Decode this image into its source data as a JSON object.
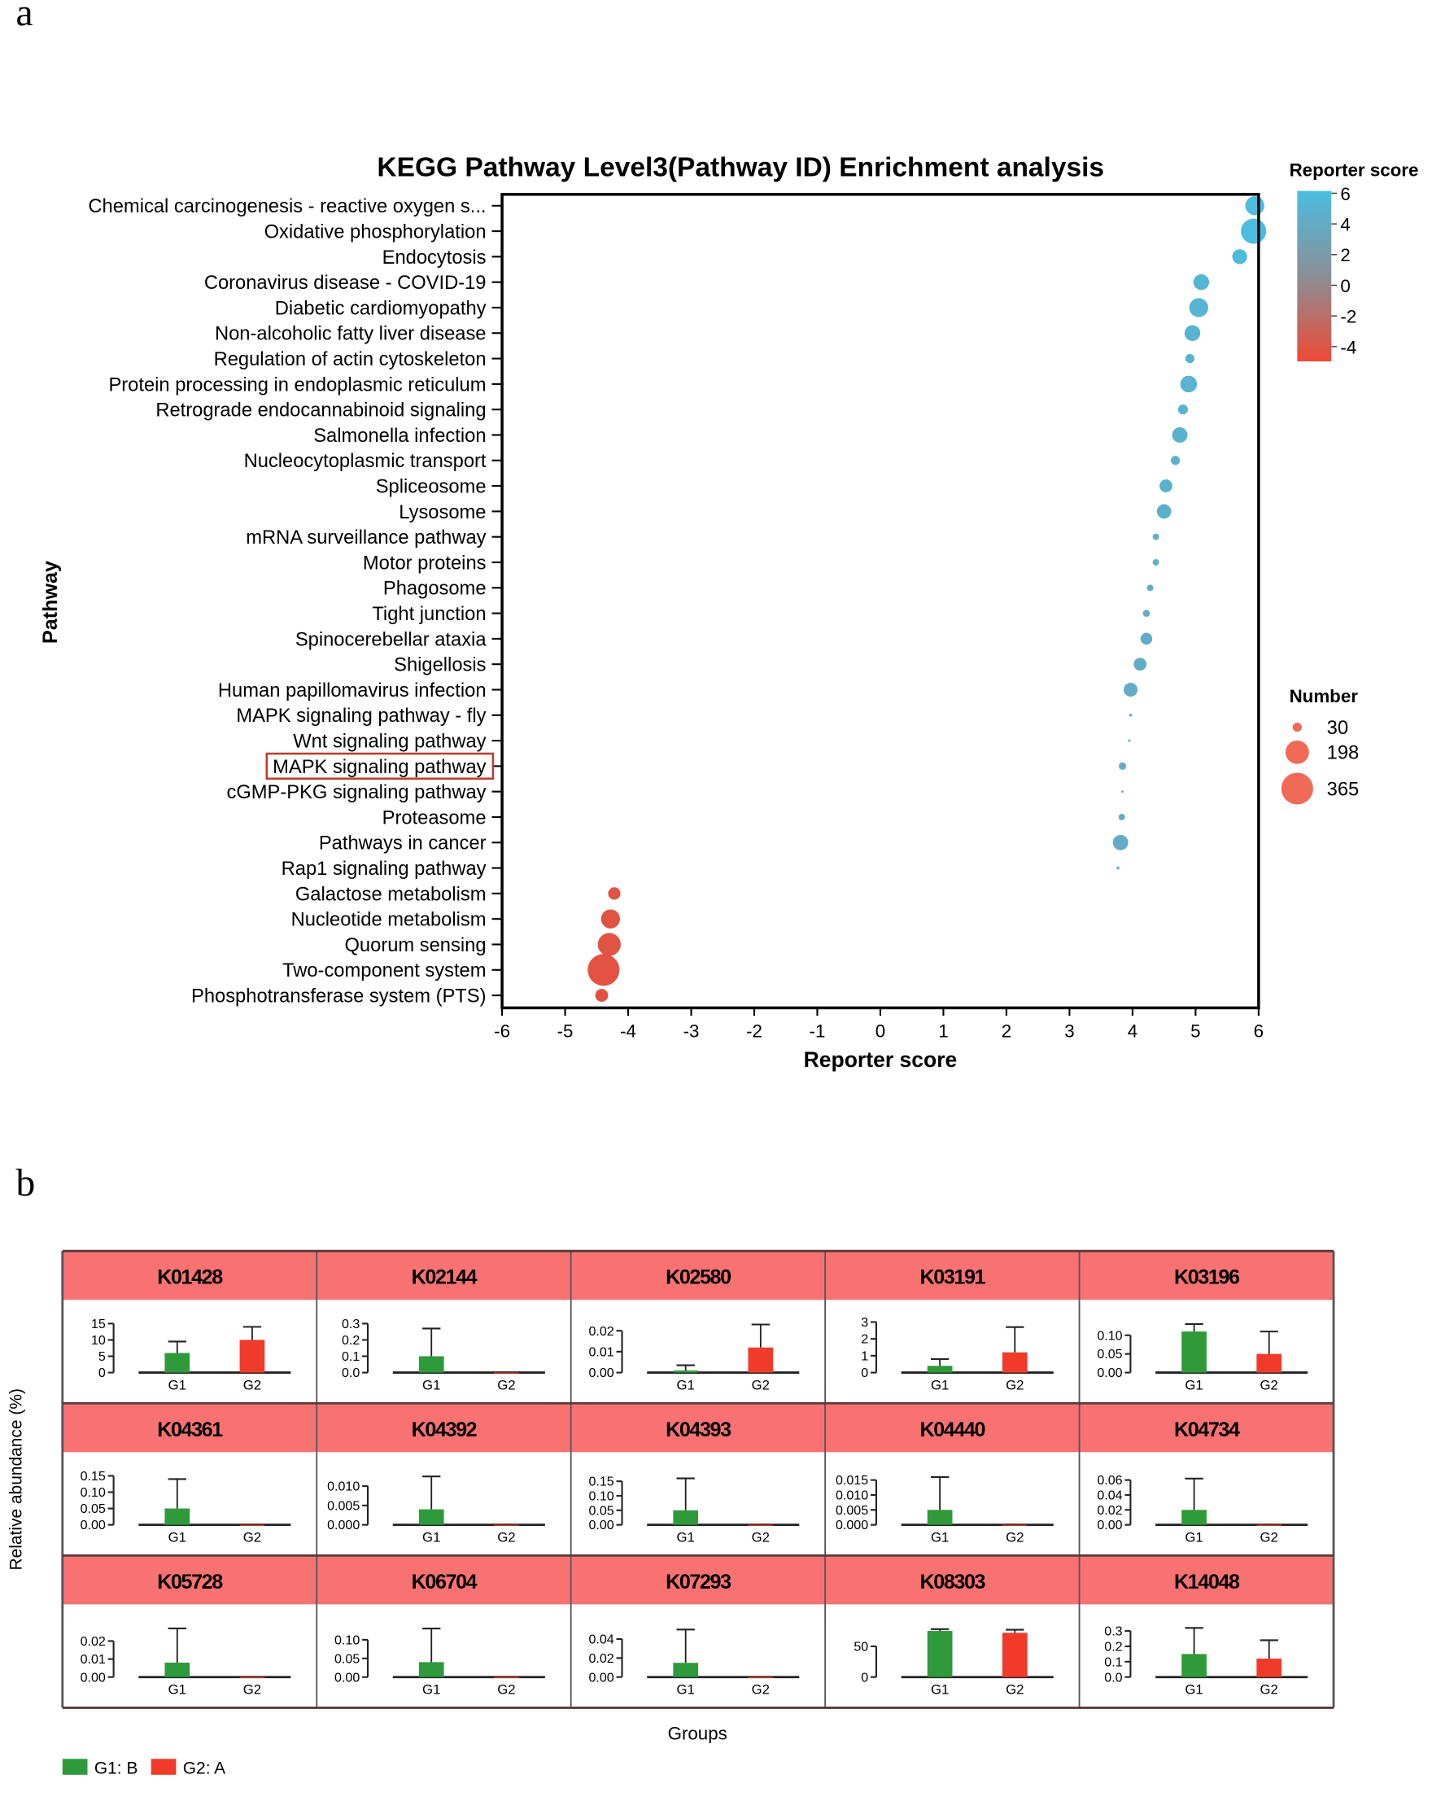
{
  "panel_labels": {
    "a": "a",
    "b": "b"
  },
  "chart_data": [
    {
      "type": "scatter",
      "title": "KEGG Pathway Level3(Pathway ID) Enrichment analysis",
      "xlabel": "Reporter score",
      "ylabel": "Pathway",
      "xlim": [
        -6,
        6
      ],
      "xticks": [
        "-6",
        "-5",
        "-4",
        "-3",
        "-2",
        "-1",
        "0",
        "1",
        "2",
        "3",
        "4",
        "5",
        "6"
      ],
      "colorbar": {
        "title": "Reporter score",
        "ticks": [
          "6",
          "4",
          "2",
          "0",
          "-2",
          "-4"
        ],
        "range": [
          -5,
          6
        ],
        "high_color": "#4bbde0",
        "mid_color": "#8a8f96",
        "low_color": "#ee4a36"
      },
      "size_legend": {
        "title": "Number",
        "entries": [
          {
            "label": "30",
            "value": 30
          },
          {
            "label": "198",
            "value": 198
          },
          {
            "label": "365",
            "value": 365
          }
        ],
        "color": "#f06a58"
      },
      "points": [
        {
          "pathway": "Chemical carcinogenesis - reactive oxygen s...",
          "score": 5.94,
          "number": 130
        },
        {
          "pathway": "Oxidative phosphorylation",
          "score": 5.92,
          "number": 230
        },
        {
          "pathway": "Endocytosis",
          "score": 5.7,
          "number": 80
        },
        {
          "pathway": "Coronavirus disease - COVID-19",
          "score": 5.09,
          "number": 90
        },
        {
          "pathway": "Diabetic cardiomyopathy",
          "score": 5.05,
          "number": 130
        },
        {
          "pathway": "Non-alcoholic fatty liver disease",
          "score": 4.95,
          "number": 90
        },
        {
          "pathway": "Regulation of actin cytoskeleton",
          "score": 4.91,
          "number": 30
        },
        {
          "pathway": "Protein processing in endoplasmic reticulum",
          "score": 4.89,
          "number": 100
        },
        {
          "pathway": "Retrograde endocannabinoid signaling",
          "score": 4.8,
          "number": 35
        },
        {
          "pathway": "Salmonella infection",
          "score": 4.75,
          "number": 85
        },
        {
          "pathway": "Nucleocytoplasmic transport",
          "score": 4.68,
          "number": 30
        },
        {
          "pathway": "Spliceosome",
          "score": 4.53,
          "number": 60
        },
        {
          "pathway": "Lysosome",
          "score": 4.5,
          "number": 75
        },
        {
          "pathway": "mRNA surveillance pathway",
          "score": 4.37,
          "number": 15
        },
        {
          "pathway": "Motor proteins",
          "score": 4.37,
          "number": 15
        },
        {
          "pathway": "Phagosome",
          "score": 4.28,
          "number": 15
        },
        {
          "pathway": "Tight junction",
          "score": 4.22,
          "number": 18
        },
        {
          "pathway": "Spinocerebellar ataxia",
          "score": 4.22,
          "number": 50
        },
        {
          "pathway": "Shigellosis",
          "score": 4.12,
          "number": 60
        },
        {
          "pathway": "Human papillomavirus infection",
          "score": 3.97,
          "number": 70
        },
        {
          "pathway": "MAPK signaling pathway - fly",
          "score": 3.97,
          "number": 3
        },
        {
          "pathway": "Wnt signaling pathway",
          "score": 3.95,
          "number": 2
        },
        {
          "pathway": "MAPK signaling pathway",
          "score": 3.84,
          "number": 20,
          "highlighted": true
        },
        {
          "pathway": "cGMP-PKG signaling pathway",
          "score": 3.84,
          "number": 2
        },
        {
          "pathway": "Proteasome",
          "score": 3.83,
          "number": 15
        },
        {
          "pathway": "Pathways in cancer",
          "score": 3.81,
          "number": 85
        },
        {
          "pathway": "Rap1 signaling pathway",
          "score": 3.77,
          "number": 3
        },
        {
          "pathway": "Galactose metabolism",
          "score": -4.22,
          "number": 55
        },
        {
          "pathway": "Nucleotide metabolism",
          "score": -4.28,
          "number": 130
        },
        {
          "pathway": "Quorum sensing",
          "score": -4.3,
          "number": 190
        },
        {
          "pathway": "Two-component system",
          "score": -4.39,
          "number": 365
        },
        {
          "pathway": "Phosphotransferase system (PTS)",
          "score": -4.42,
          "number": 60
        }
      ]
    },
    {
      "type": "bar",
      "xlabel": "Groups",
      "ylabel": "Relative abundance (%)",
      "groups": [
        "G1",
        "G2"
      ],
      "legend": [
        {
          "label": "G1: B",
          "color": "#2e9a3a"
        },
        {
          "label": "G2: A",
          "color": "#f03a2a"
        }
      ],
      "header_color": "#f87272",
      "panels": [
        {
          "ko": "K01428",
          "ticks": [
            "0",
            "5",
            "10",
            "15"
          ],
          "tick_values": [
            0,
            5,
            10,
            15
          ],
          "ymax": 16,
          "values": [
            6,
            10
          ],
          "errors": [
            9.5,
            14
          ]
        },
        {
          "ko": "K02144",
          "ticks": [
            "0.0",
            "0.1",
            "0.2",
            "0.3"
          ],
          "tick_values": [
            0,
            0.1,
            0.2,
            0.3
          ],
          "ymax": 0.32,
          "values": [
            0.1,
            0
          ],
          "errors": [
            0.27,
            0
          ]
        },
        {
          "ko": "K02580",
          "ticks": [
            "0.00",
            "0.01",
            "0.02"
          ],
          "tick_values": [
            0,
            0.01,
            0.02
          ],
          "ymax": 0.025,
          "values": [
            0.001,
            0.012
          ],
          "errors": [
            0.0035,
            0.023
          ]
        },
        {
          "ko": "K03191",
          "ticks": [
            "0",
            "1",
            "2",
            "3"
          ],
          "tick_values": [
            0,
            1,
            2,
            3
          ],
          "ymax": 3.1,
          "values": [
            0.4,
            1.2
          ],
          "errors": [
            0.8,
            2.7
          ]
        },
        {
          "ko": "K03196",
          "ticks": [
            "0.00",
            "0.05",
            "0.10"
          ],
          "tick_values": [
            0,
            0.05,
            0.1
          ],
          "ymax": 0.14,
          "values": [
            0.11,
            0.05
          ],
          "errors": [
            0.13,
            0.11
          ]
        },
        {
          "ko": "K04361",
          "ticks": [
            "0.00",
            "0.05",
            "0.10",
            "0.15"
          ],
          "tick_values": [
            0,
            0.05,
            0.1,
            0.15
          ],
          "ymax": 0.16,
          "values": [
            0.05,
            0
          ],
          "errors": [
            0.14,
            0
          ]
        },
        {
          "ko": "K04392",
          "ticks": [
            "0.000",
            "0.005",
            "0.010"
          ],
          "tick_values": [
            0,
            0.005,
            0.01
          ],
          "ymax": 0.0135,
          "values": [
            0.004,
            0
          ],
          "errors": [
            0.0125,
            0
          ]
        },
        {
          "ko": "K04393",
          "ticks": [
            "0.00",
            "0.05",
            "0.10",
            "0.15"
          ],
          "tick_values": [
            0,
            0.05,
            0.1,
            0.15
          ],
          "ymax": 0.18,
          "values": [
            0.05,
            0
          ],
          "errors": [
            0.16,
            0
          ]
        },
        {
          "ko": "K04440",
          "ticks": [
            "0.000",
            "0.005",
            "0.010",
            "0.015"
          ],
          "tick_values": [
            0,
            0.005,
            0.01,
            0.015
          ],
          "ymax": 0.0175,
          "values": [
            0.005,
            0
          ],
          "errors": [
            0.016,
            0
          ]
        },
        {
          "ko": "K04734",
          "ticks": [
            "0.00",
            "0.02",
            "0.04",
            "0.06"
          ],
          "tick_values": [
            0,
            0.02,
            0.04,
            0.06
          ],
          "ymax": 0.07,
          "values": [
            0.02,
            0
          ],
          "errors": [
            0.062,
            0
          ]
        },
        {
          "ko": "K05728",
          "ticks": [
            "0.00",
            "0.01",
            "0.02"
          ],
          "tick_values": [
            0,
            0.01,
            0.02
          ],
          "ymax": 0.029,
          "values": [
            0.008,
            0
          ],
          "errors": [
            0.027,
            0
          ]
        },
        {
          "ko": "K06704",
          "ticks": [
            "0.00",
            "0.05",
            "0.10"
          ],
          "tick_values": [
            0,
            0.05,
            0.1
          ],
          "ymax": 0.14,
          "values": [
            0.04,
            0
          ],
          "errors": [
            0.13,
            0
          ]
        },
        {
          "ko": "K07293",
          "ticks": [
            "0.00",
            "0.02",
            "0.04"
          ],
          "tick_values": [
            0,
            0.02,
            0.04
          ],
          "ymax": 0.055,
          "values": [
            0.015,
            0
          ],
          "errors": [
            0.05,
            0
          ]
        },
        {
          "ko": "K08303",
          "ticks": [
            "0",
            "50"
          ],
          "tick_values": [
            0,
            50
          ],
          "ymax": 85,
          "values": [
            75,
            72
          ],
          "errors": [
            78,
            77
          ]
        },
        {
          "ko": "K14048",
          "ticks": [
            "0.0",
            "0.1",
            "0.2",
            "0.3"
          ],
          "tick_values": [
            0,
            0.1,
            0.2,
            0.3
          ],
          "ymax": 0.34,
          "values": [
            0.15,
            0.12
          ],
          "errors": [
            0.32,
            0.24
          ]
        }
      ]
    }
  ]
}
